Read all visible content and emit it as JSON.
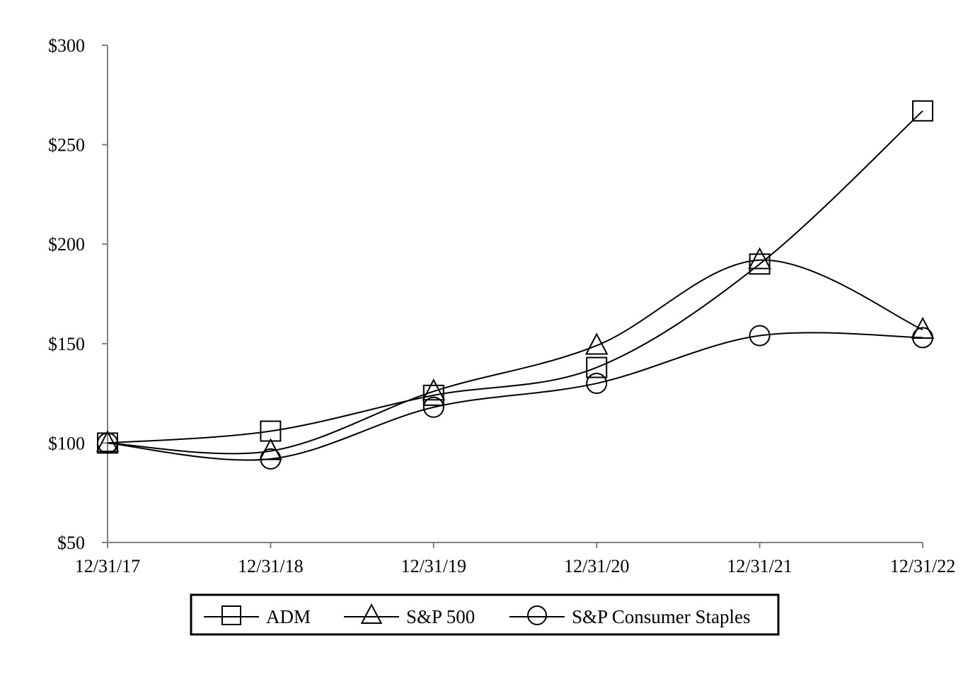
{
  "chart_data": {
    "type": "line",
    "title": "",
    "xlabel": "",
    "ylabel": "",
    "categories": [
      "12/31/17",
      "12/31/18",
      "12/31/19",
      "12/31/20",
      "12/31/21",
      "12/31/22"
    ],
    "yticks": [
      50,
      100,
      150,
      200,
      250,
      300
    ],
    "ytick_labels": [
      "$50",
      "$100",
      "$150",
      "$200",
      "$250",
      "$300"
    ],
    "ylim": [
      50,
      300
    ],
    "grid": false,
    "legend_position": "bottom",
    "series": [
      {
        "name": "ADM",
        "marker": "square",
        "values": [
          100,
          106,
          124,
          138,
          190,
          267
        ]
      },
      {
        "name": "S&P 500",
        "marker": "triangle",
        "values": [
          100,
          96,
          126,
          149,
          192,
          157
        ]
      },
      {
        "name": "S&P Consumer Staples",
        "marker": "circle",
        "values": [
          100,
          92,
          118,
          130,
          154,
          153
        ]
      }
    ],
    "colors": {
      "line": "#000000",
      "axis": "#808080",
      "background": "#ffffff"
    }
  }
}
